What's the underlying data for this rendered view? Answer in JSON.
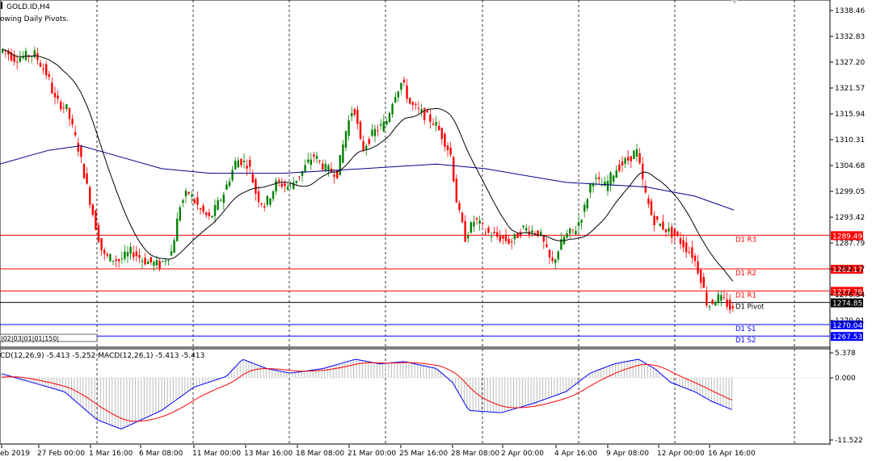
{
  "window": {
    "symbol": "GOLD.ID,H4",
    "indicator_note": "owing Daily Pivots."
  },
  "price_axis": {
    "ticks": [
      "1338.46",
      "1332.83",
      "1327.20",
      "1321.57",
      "1315.94",
      "1310.31",
      "1304.68",
      "1299.05",
      "1293.42",
      "1287.79",
      "1282.17",
      "1276.54",
      "1270.91"
    ]
  },
  "pivots": [
    {
      "name": "D1 R3",
      "value": "1289.49",
      "color": "#ff0000"
    },
    {
      "name": "D1 R2",
      "value": "1282.17",
      "color": "#ff0000"
    },
    {
      "name": "D1 R1",
      "value": "1277.36",
      "color": "#ff0000"
    },
    {
      "name": "D1 Pivot",
      "value": "1274.85",
      "color": "#000000"
    },
    {
      "name": "D1 S1",
      "value": "1270.04",
      "color": "#0000ff"
    },
    {
      "name": "D1 S2",
      "value": "1267.53",
      "color": "#0000ff"
    }
  ],
  "macd": {
    "header": "CD(12,26,9) -5.413 -5.252 MACD(12,26,1) -5.413 -5.413",
    "axis_top": "5.378",
    "axis_zero": "0.000",
    "axis_bottom": "-11.522"
  },
  "time_axis": {
    "labels": [
      "eb 2019",
      "27 Feb 00:00",
      "1 Mar 16:00",
      "6 Mar 08:00",
      "11 Mar 00:00",
      "13 Mar 16:00",
      "18 Mar 08:00",
      "21 Mar 00:00",
      "25 Mar 16:00",
      "28 Mar 08:00",
      "2 Apr 00:00",
      "4 Apr 16:00",
      "9 Apr 08:00",
      "12 Apr 00:00",
      "16 Apr 16:00"
    ]
  },
  "overlay_text": "|02|03|01|01|150|",
  "colors": {
    "bull": "#008000",
    "bear": "#ff0000",
    "ma_fast": "#000000",
    "ma_slow": "#00008b",
    "macd_line": "#0000ff",
    "signal_line": "#ff0000",
    "grid": "#000000"
  }
}
